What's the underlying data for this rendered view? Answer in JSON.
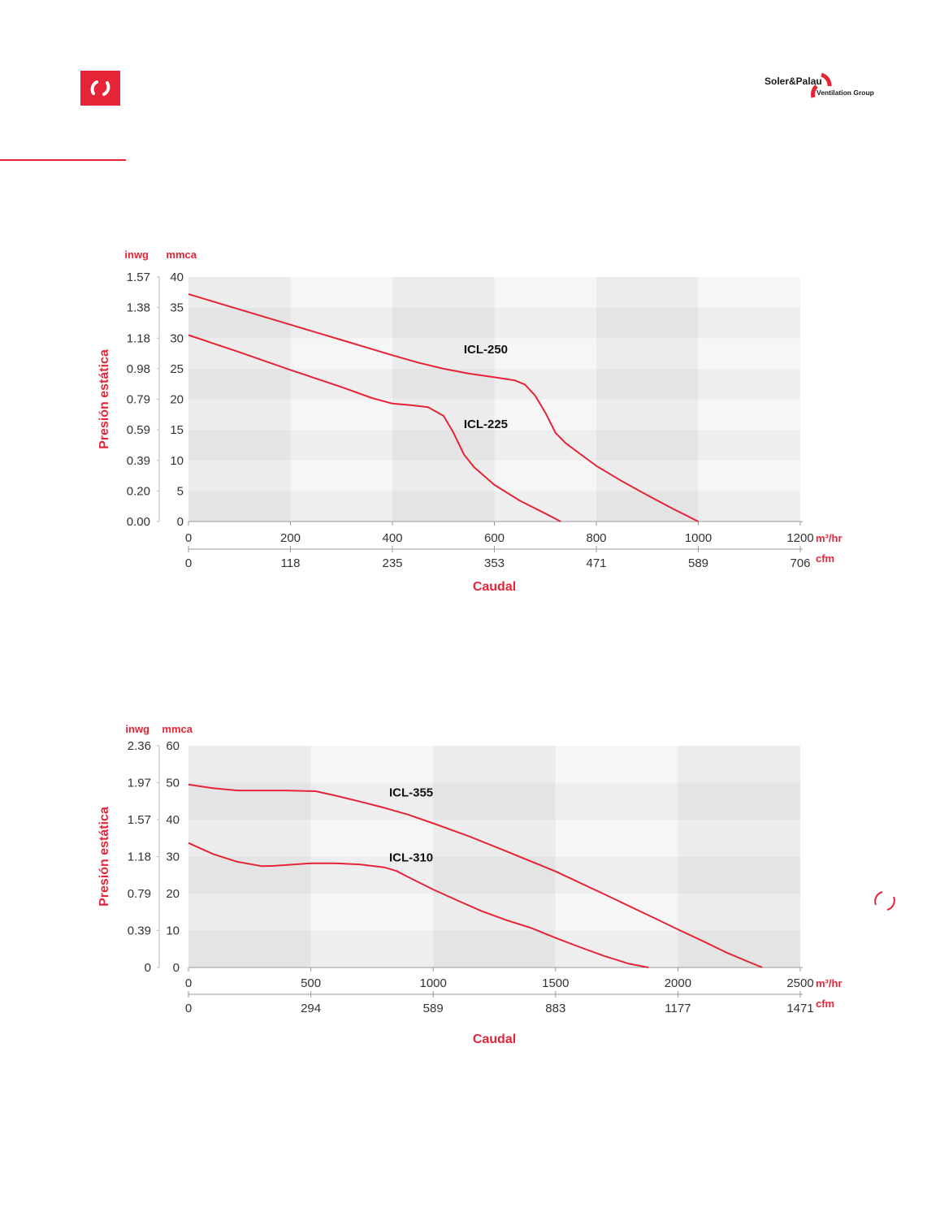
{
  "brand": {
    "name_line1": "Soler&Palau",
    "name_line2": "Ventilation Group",
    "accent": "#e52437"
  },
  "icons": {
    "logo": "refresh-arrows-icon",
    "page_mark": "circular-arrows-icon"
  },
  "chart_data": [
    {
      "type": "line",
      "title": "",
      "ylabel": "Presión estática",
      "xlabel": "Caudal",
      "y_units": {
        "primary": "mmca",
        "secondary": "inwg"
      },
      "x_units": {
        "primary": "m³/hr",
        "secondary": "cfm"
      },
      "ylim": [
        0,
        40
      ],
      "xlim": [
        0,
        1200
      ],
      "y_ticks": [
        0,
        5,
        10,
        15,
        20,
        25,
        30,
        35,
        40
      ],
      "y_ticks_secondary": [
        "0.00",
        "0.20",
        "0.39",
        "0.59",
        "0.79",
        "0.98",
        "1.18",
        "1.38",
        "1.57"
      ],
      "x_ticks": [
        0,
        200,
        400,
        600,
        800,
        1000,
        1200
      ],
      "x_ticks_secondary": [
        "0",
        "118",
        "235",
        "353",
        "471",
        "589",
        "706"
      ],
      "series": [
        {
          "name": "ICL-250",
          "label_at": [
            540,
            27.5
          ],
          "points": [
            [
              0,
              37.2
            ],
            [
              100,
              34.7
            ],
            [
              200,
              32.2
            ],
            [
              300,
              29.7
            ],
            [
              400,
              27.2
            ],
            [
              450,
              26.0
            ],
            [
              500,
              25.0
            ],
            [
              550,
              24.2
            ],
            [
              600,
              23.6
            ],
            [
              640,
              23.1
            ],
            [
              660,
              22.4
            ],
            [
              680,
              20.6
            ],
            [
              700,
              17.8
            ],
            [
              720,
              14.5
            ],
            [
              740,
              12.8
            ],
            [
              800,
              9.1
            ],
            [
              850,
              6.6
            ],
            [
              900,
              4.3
            ],
            [
              950,
              2.1
            ],
            [
              1000,
              0.0
            ]
          ]
        },
        {
          "name": "ICL-225",
          "label_at": [
            540,
            15.3
          ],
          "points": [
            [
              0,
              30.5
            ],
            [
              100,
              27.7
            ],
            [
              200,
              24.8
            ],
            [
              300,
              22.0
            ],
            [
              360,
              20.2
            ],
            [
              400,
              19.3
            ],
            [
              440,
              19.0
            ],
            [
              470,
              18.7
            ],
            [
              500,
              17.3
            ],
            [
              520,
              14.5
            ],
            [
              540,
              11.0
            ],
            [
              560,
              8.9
            ],
            [
              600,
              6.0
            ],
            [
              650,
              3.4
            ],
            [
              700,
              1.3
            ],
            [
              730,
              0.0
            ]
          ]
        }
      ]
    },
    {
      "type": "line",
      "title": "",
      "ylabel": "Presión estática",
      "xlabel": "Caudal",
      "y_units": {
        "primary": "mmca",
        "secondary": "inwg"
      },
      "x_units": {
        "primary": "m³/hr",
        "secondary": "cfm"
      },
      "ylim": [
        0,
        60
      ],
      "xlim": [
        0,
        2500
      ],
      "y_ticks": [
        0,
        10,
        20,
        30,
        40,
        50,
        60
      ],
      "y_ticks_secondary": [
        "0",
        "0.39",
        "1.18",
        "1.57",
        "1.97",
        "2.36"
      ],
      "y_ticks_secondary_at": [
        0,
        10,
        30,
        40,
        50,
        60
      ],
      "y_label_20_secondary": "0.79",
      "x_ticks": [
        0,
        500,
        1000,
        1500,
        2000,
        2500
      ],
      "x_ticks_secondary": [
        "0",
        "294",
        "589",
        "883",
        "1177",
        "1471"
      ],
      "series": [
        {
          "name": "ICL-355",
          "label_at": [
            820,
            46.3
          ],
          "points": [
            [
              0,
              49.5
            ],
            [
              100,
              48.5
            ],
            [
              200,
              47.9
            ],
            [
              300,
              47.9
            ],
            [
              400,
              47.9
            ],
            [
              520,
              47.7
            ],
            [
              600,
              46.5
            ],
            [
              700,
              44.9
            ],
            [
              800,
              43.2
            ],
            [
              900,
              41.3
            ],
            [
              1000,
              39.0
            ],
            [
              1150,
              35.4
            ],
            [
              1300,
              31.4
            ],
            [
              1500,
              26.0
            ],
            [
              1700,
              19.8
            ],
            [
              1900,
              13.5
            ],
            [
              2000,
              10.3
            ],
            [
              2100,
              7.2
            ],
            [
              2200,
              4.0
            ],
            [
              2300,
              1.2
            ],
            [
              2345,
              0.0
            ]
          ]
        },
        {
          "name": "ICL-310",
          "label_at": [
            820,
            28.7
          ],
          "points": [
            [
              0,
              33.7
            ],
            [
              100,
              30.7
            ],
            [
              200,
              28.6
            ],
            [
              300,
              27.4
            ],
            [
              350,
              27.5
            ],
            [
              500,
              28.2
            ],
            [
              600,
              28.2
            ],
            [
              700,
              27.9
            ],
            [
              800,
              27.1
            ],
            [
              850,
              26.1
            ],
            [
              900,
              24.4
            ],
            [
              1000,
              21.1
            ],
            [
              1100,
              18.1
            ],
            [
              1200,
              15.2
            ],
            [
              1300,
              12.8
            ],
            [
              1400,
              10.7
            ],
            [
              1500,
              8.0
            ],
            [
              1600,
              5.5
            ],
            [
              1700,
              3.1
            ],
            [
              1800,
              1.0
            ],
            [
              1880,
              0.0
            ]
          ]
        }
      ]
    }
  ]
}
